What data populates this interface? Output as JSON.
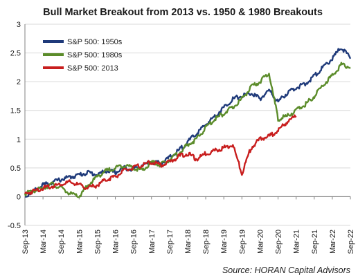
{
  "chart_data": {
    "type": "line",
    "title": "Bull Market Breakout from 2013 vs. 1950 & 1980 Breakouts",
    "source": "Source: HORAN Capital Advisors",
    "xlabel": "",
    "ylabel": "",
    "ylim": [
      -0.5,
      3
    ],
    "yticks": [
      "-0.5",
      "0",
      "0.5",
      "1",
      "1.5",
      "2",
      "2.5",
      "3"
    ],
    "xticks": [
      "Sep-13",
      "Mar-14",
      "Sep-14",
      "Mar-15",
      "Sep-15",
      "Mar-16",
      "Sep-16",
      "Mar-17",
      "Sep-17",
      "Mar-18",
      "Sep-18",
      "Mar-19",
      "Sep-19",
      "Mar-20",
      "Sep-20",
      "Mar-21",
      "Sep-21",
      "Mar-22",
      "Sep-22"
    ],
    "grid": "horizontal",
    "legend": "top-left",
    "series": [
      {
        "name": "S&P 500: 1950s",
        "color": "#1f3a7a",
        "x": [
          0,
          0.5,
          1,
          1.5,
          2,
          2.5,
          3,
          3.5,
          4,
          4.5,
          5,
          5.5,
          6,
          6.5,
          7,
          7.5,
          8,
          8.5,
          9,
          9.5,
          10,
          10.5,
          11,
          11.5,
          12,
          12.5,
          13,
          13.5,
          14,
          14.5,
          15,
          15.5,
          16,
          16.5,
          17,
          17.5,
          18
        ],
        "values": [
          0,
          0.1,
          0.2,
          0.25,
          0.3,
          0.34,
          0.38,
          0.42,
          0.38,
          0.45,
          0.42,
          0.5,
          0.48,
          0.55,
          0.6,
          0.58,
          0.68,
          0.8,
          0.95,
          1.1,
          1.25,
          1.4,
          1.55,
          1.7,
          1.75,
          1.8,
          1.7,
          1.85,
          1.65,
          1.8,
          1.9,
          1.95,
          2.1,
          2.25,
          2.4,
          2.6,
          2.4
        ]
      },
      {
        "name": "S&P 500: 1980s",
        "color": "#5b8c2a",
        "x": [
          0,
          0.5,
          1,
          1.5,
          2,
          2.5,
          3,
          3.5,
          4,
          4.5,
          5,
          5.5,
          6,
          6.5,
          7,
          7.5,
          8,
          8.5,
          9,
          9.5,
          10,
          10.5,
          11,
          11.5,
          12,
          12.5,
          13,
          13.5,
          14,
          14.5,
          15,
          15.5,
          16,
          16.5,
          17,
          17.5,
          18
        ],
        "values": [
          0.05,
          0.1,
          0.15,
          0.22,
          0.15,
          0.05,
          0.0,
          0.2,
          0.35,
          0.45,
          0.5,
          0.55,
          0.5,
          0.45,
          0.6,
          0.55,
          0.65,
          0.75,
          0.9,
          1.0,
          1.2,
          1.35,
          1.45,
          1.55,
          1.7,
          1.9,
          2.0,
          2.15,
          1.35,
          1.4,
          1.5,
          1.6,
          1.75,
          1.95,
          2.1,
          2.3,
          2.25
        ]
      },
      {
        "name": "S&P 500: 2013",
        "color": "#c81e1e",
        "x": [
          0,
          0.5,
          1,
          1.5,
          2,
          2.5,
          3,
          3.5,
          4,
          4.5,
          5,
          5.5,
          6,
          6.5,
          7,
          7.5,
          8,
          8.5,
          9,
          9.5,
          10,
          10.5,
          11,
          11.5,
          12,
          12.5,
          13,
          13.5,
          14,
          14.5,
          15
        ],
        "values": [
          0.05,
          0.1,
          0.15,
          0.18,
          0.22,
          0.25,
          0.2,
          0.15,
          0.2,
          0.3,
          0.35,
          0.45,
          0.5,
          0.55,
          0.6,
          0.55,
          0.6,
          0.7,
          0.75,
          0.65,
          0.75,
          0.8,
          0.85,
          0.9,
          0.4,
          0.85,
          1.0,
          1.05,
          1.15,
          1.3,
          1.4
        ]
      }
    ]
  }
}
